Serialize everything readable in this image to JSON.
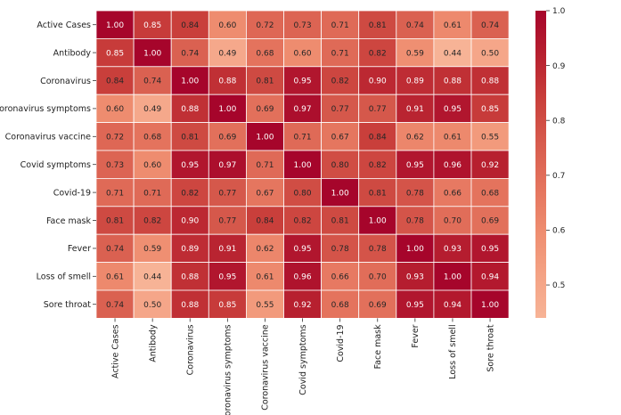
{
  "chart_data": {
    "type": "heatmap",
    "title": "",
    "xlabel": "",
    "ylabel": "",
    "labels": [
      "Active Cases",
      "Antibody",
      "Coronavirus",
      "Coronavirus symptoms",
      "Coronavirus vaccine",
      "Covid symptoms",
      "Covid-19",
      "Face mask",
      "Fever",
      "Loss of smell",
      "Sore throat"
    ],
    "matrix": [
      [
        1.0,
        0.85,
        0.84,
        0.6,
        0.72,
        0.73,
        0.71,
        0.81,
        0.74,
        0.61,
        0.74
      ],
      [
        0.85,
        1.0,
        0.74,
        0.49,
        0.68,
        0.6,
        0.71,
        0.82,
        0.59,
        0.44,
        0.5
      ],
      [
        0.84,
        0.74,
        1.0,
        0.88,
        0.81,
        0.95,
        0.82,
        0.9,
        0.89,
        0.88,
        0.88
      ],
      [
        0.6,
        0.49,
        0.88,
        1.0,
        0.69,
        0.97,
        0.77,
        0.77,
        0.91,
        0.95,
        0.85
      ],
      [
        0.72,
        0.68,
        0.81,
        0.69,
        1.0,
        0.71,
        0.67,
        0.84,
        0.62,
        0.61,
        0.55
      ],
      [
        0.73,
        0.6,
        0.95,
        0.97,
        0.71,
        1.0,
        0.8,
        0.82,
        0.95,
        0.96,
        0.92
      ],
      [
        0.71,
        0.71,
        0.82,
        0.77,
        0.67,
        0.8,
        1.0,
        0.81,
        0.78,
        0.66,
        0.68
      ],
      [
        0.81,
        0.82,
        0.9,
        0.77,
        0.84,
        0.82,
        0.81,
        1.0,
        0.78,
        0.7,
        0.69
      ],
      [
        0.74,
        0.59,
        0.89,
        0.91,
        0.62,
        0.95,
        0.78,
        0.78,
        1.0,
        0.93,
        0.95
      ],
      [
        0.61,
        0.44,
        0.88,
        0.95,
        0.61,
        0.96,
        0.66,
        0.7,
        0.93,
        1.0,
        0.94
      ],
      [
        0.74,
        0.5,
        0.88,
        0.85,
        0.55,
        0.92,
        0.68,
        0.69,
        0.95,
        0.94,
        1.0
      ]
    ],
    "colorbar": {
      "vmin": 0.44,
      "vmax": 1.0,
      "ticks": [
        0.5,
        0.6,
        0.7,
        0.8,
        0.9,
        1.0
      ],
      "tick_labels": [
        "0.5",
        "0.6",
        "0.7",
        "0.8",
        "0.9",
        "1.0"
      ]
    },
    "colormap": [
      "#f7b396",
      "#f4a284",
      "#ee8c6f",
      "#e4735d",
      "#d75b4d",
      "#c93f3b",
      "#b7202f",
      "#a6052b"
    ],
    "grid": false
  }
}
